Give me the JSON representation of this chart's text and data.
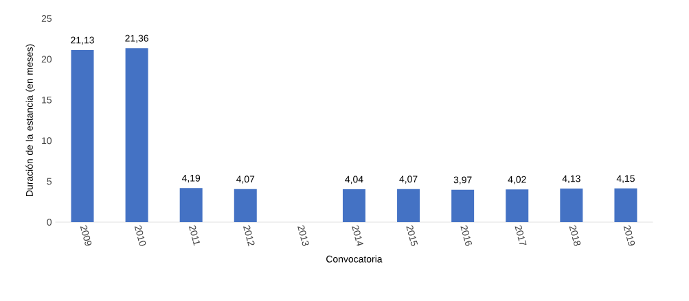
{
  "chart_data": {
    "type": "bar",
    "xlabel": "Convocatoria",
    "ylabel": "Duración de la estancia (en meses)",
    "categories": [
      "2009",
      "2010",
      "2011",
      "2012",
      "2013",
      "2014",
      "2015",
      "2016",
      "2017",
      "2018",
      "2019"
    ],
    "values": [
      21.13,
      21.36,
      4.19,
      4.07,
      null,
      4.04,
      4.07,
      3.97,
      4.02,
      4.13,
      4.15
    ],
    "value_labels": [
      "21,13",
      "21,36",
      "4,19",
      "4,07",
      null,
      "4,04",
      "4,07",
      "3,97",
      "4,02",
      "4,13",
      "4,15"
    ],
    "color": "#4472c4",
    "ylim": [
      0,
      25
    ],
    "yticks": [
      0,
      5,
      10,
      15,
      20,
      25
    ],
    "grid": false
  }
}
